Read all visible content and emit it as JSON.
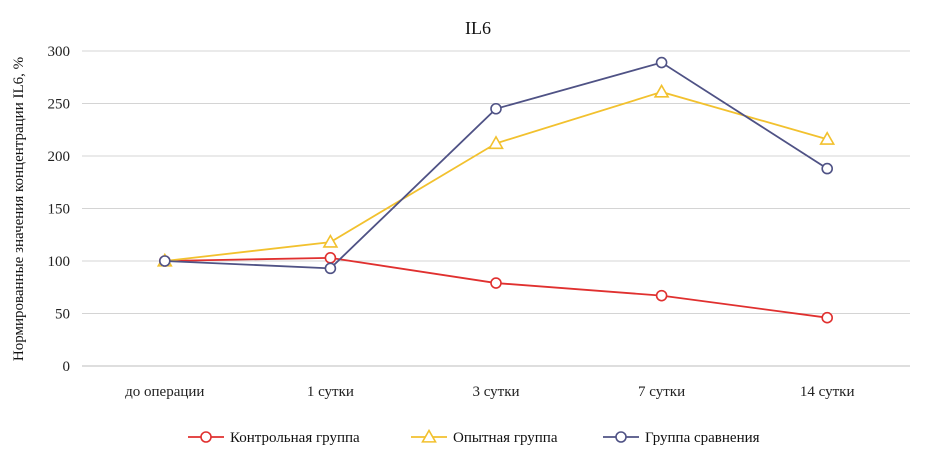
{
  "chart_data": {
    "type": "line",
    "title": "IL6",
    "xlabel": "",
    "ylabel": "Нормированные значения концентрации IL6, %",
    "categories": [
      "до операции",
      "1 сутки",
      "3 сутки",
      "7 сутки",
      "14 сутки"
    ],
    "ylim": [
      0,
      300
    ],
    "yticks": [
      0,
      50,
      100,
      150,
      200,
      250,
      300
    ],
    "grid": true,
    "legend": "bottom",
    "series": [
      {
        "name": "Контрольная группа",
        "values": [
          100,
          103,
          79,
          67,
          46
        ],
        "color": "#e0302f",
        "marker": "circle"
      },
      {
        "name": "Опытная группа",
        "values": [
          100,
          118,
          212,
          261,
          216
        ],
        "color": "#f2c12e",
        "marker": "triangle"
      },
      {
        "name": "Группа сравнения",
        "values": [
          100,
          93,
          245,
          289,
          188
        ],
        "color": "#4f5285",
        "marker": "circle"
      }
    ]
  }
}
